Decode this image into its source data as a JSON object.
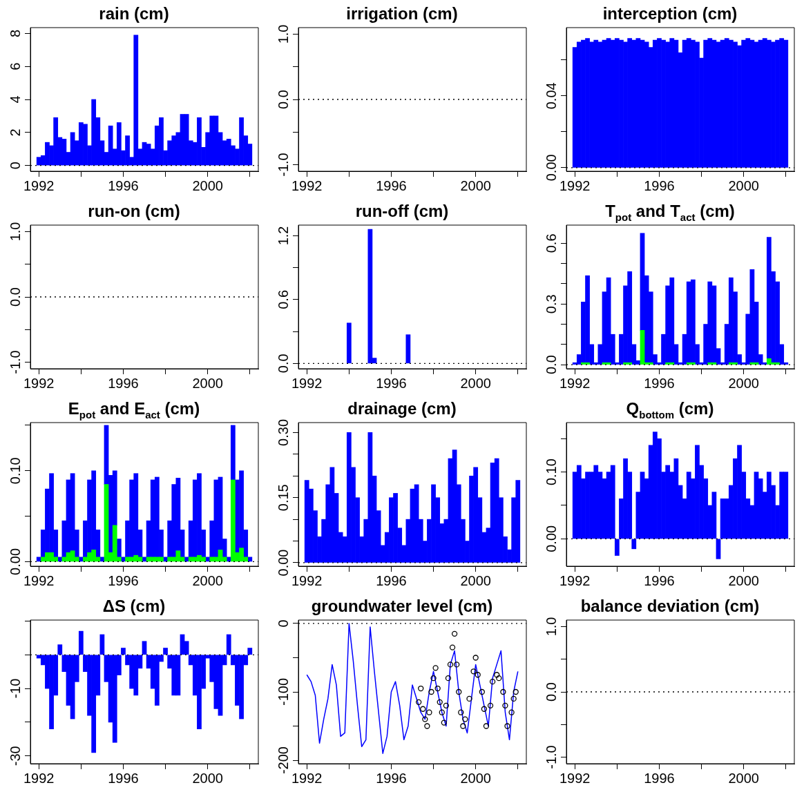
{
  "chart_data": [
    {
      "type": "bar",
      "title": "rain (cm)",
      "color": "#0000ff",
      "x": [
        1992,
        1992.2,
        1992.4,
        1992.6,
        1992.8,
        1993,
        1993.2,
        1993.4,
        1993.6,
        1993.8,
        1994,
        1994.2,
        1994.4,
        1994.6,
        1994.8,
        1995,
        1995.2,
        1995.4,
        1995.6,
        1995.8,
        1996,
        1996.2,
        1996.4,
        1996.6,
        1996.8,
        1997,
        1997.2,
        1997.4,
        1997.6,
        1997.8,
        1998,
        1998.2,
        1998.4,
        1998.6,
        1998.8,
        1999,
        1999.2,
        1999.4,
        1999.6,
        1999.8,
        2000,
        2000.2,
        2000.4,
        2000.6,
        2000.8,
        2001,
        2001.2,
        2001.4,
        2001.6,
        2001.8,
        2002
      ],
      "values": [
        0.5,
        0.6,
        1.4,
        1.2,
        2.9,
        1.7,
        1.6,
        0.8,
        2.0,
        1.5,
        2.6,
        2.5,
        1.2,
        4.0,
        2.9,
        1.5,
        0.8,
        2.4,
        1.0,
        2.6,
        0.9,
        1.8,
        0.5,
        7.9,
        1.0,
        1.4,
        1.3,
        1.0,
        2.4,
        2.9,
        0.9,
        1.5,
        1.8,
        2.0,
        3.1,
        3.1,
        1.5,
        1.4,
        2.9,
        1.1,
        2.0,
        3.0,
        3.0,
        2.0,
        1.5,
        1.6,
        1.2,
        1.0,
        2.9,
        1.8,
        1.3
      ],
      "xlim": [
        1991.6,
        2002.4
      ],
      "xticks": [
        1992,
        {
          "value": 1994,
          "label": null
        },
        1996,
        {
          "value": 1998,
          "label": null
        },
        2000,
        {
          "value": 2002,
          "label": null
        }
      ],
      "ylim": [
        -0.35,
        8.35
      ],
      "yticks": [
        0,
        2,
        4,
        6,
        8
      ],
      "ref_lines": [
        {
          "axis": "y",
          "value": 0,
          "color": "#000000",
          "line_style": "dotted"
        }
      ]
    },
    {
      "type": "bar",
      "title": "irrigation (cm)",
      "xlim": [
        1991.6,
        2002.4
      ],
      "xticks": [
        1992,
        {
          "value": 1994,
          "label": null
        },
        1996,
        {
          "value": 1998,
          "label": null
        },
        2000,
        {
          "value": 2002,
          "label": null
        }
      ],
      "ylim": [
        -1.1,
        1.1
      ],
      "yticks": [
        {
          "value": -1,
          "label": "-1.0"
        },
        {
          "value": -0.5,
          "label": null
        },
        {
          "value": 0,
          "label": "0.0"
        },
        {
          "value": 0.5,
          "label": null
        },
        {
          "value": 1,
          "label": "1.0"
        }
      ],
      "ref_lines": [
        {
          "axis": "y",
          "value": 0,
          "color": "#000000",
          "line_style": "dotted"
        }
      ]
    },
    {
      "type": "bar",
      "title": "interception (cm)",
      "color": "#0000ff",
      "x": [
        1992,
        1992.2,
        1992.4,
        1992.6,
        1992.8,
        1993,
        1993.2,
        1993.4,
        1993.6,
        1993.8,
        1994,
        1994.2,
        1994.4,
        1994.6,
        1994.8,
        1995,
        1995.2,
        1995.4,
        1995.6,
        1995.8,
        1996,
        1996.2,
        1996.4,
        1996.6,
        1996.8,
        1997,
        1997.2,
        1997.4,
        1997.6,
        1997.8,
        1998,
        1998.2,
        1998.4,
        1998.6,
        1998.8,
        1999,
        1999.2,
        1999.4,
        1999.6,
        1999.8,
        2000,
        2000.2,
        2000.4,
        2000.6,
        2000.8,
        2001,
        2001.2,
        2001.4,
        2001.6,
        2001.8,
        2002
      ],
      "values": [
        0.067,
        0.07,
        0.071,
        0.072,
        0.07,
        0.071,
        0.07,
        0.071,
        0.072,
        0.071,
        0.072,
        0.071,
        0.07,
        0.072,
        0.071,
        0.072,
        0.071,
        0.07,
        0.067,
        0.071,
        0.072,
        0.071,
        0.07,
        0.072,
        0.071,
        0.064,
        0.071,
        0.072,
        0.071,
        0.07,
        0.061,
        0.071,
        0.072,
        0.071,
        0.07,
        0.071,
        0.072,
        0.071,
        0.07,
        0.068,
        0.071,
        0.072,
        0.071,
        0.07,
        0.071,
        0.072,
        0.071,
        0.07,
        0.071,
        0.072,
        0.071
      ],
      "xlim": [
        1991.6,
        2002.4
      ],
      "xticks": [
        1992,
        {
          "value": 1994,
          "label": null
        },
        1996,
        {
          "value": 1998,
          "label": null
        },
        2000,
        {
          "value": 2002,
          "label": null
        }
      ],
      "ylim": [
        -0.002,
        0.078
      ],
      "yticks": [
        {
          "value": 0,
          "label": "0.00"
        },
        {
          "value": 0.02,
          "label": null
        },
        {
          "value": 0.04,
          "label": "0.04"
        },
        {
          "value": 0.06,
          "label": null
        }
      ],
      "ref_lines": [
        {
          "axis": "y",
          "value": 0,
          "color": "#000000",
          "line_style": "dotted"
        }
      ]
    },
    {
      "type": "bar",
      "title": "run-on (cm)",
      "xlim": [
        1991.6,
        2002.4
      ],
      "xticks": [
        1992,
        {
          "value": 1994,
          "label": null
        },
        1996,
        {
          "value": 1998,
          "label": null
        },
        2000,
        {
          "value": 2002,
          "label": null
        }
      ],
      "ylim": [
        -1.1,
        1.1
      ],
      "yticks": [
        {
          "value": -1,
          "label": "-1.0"
        },
        {
          "value": -0.5,
          "label": null
        },
        {
          "value": 0,
          "label": "0.0"
        },
        {
          "value": 0.5,
          "label": null
        },
        {
          "value": 1,
          "label": "1.0"
        }
      ],
      "ref_lines": [
        {
          "axis": "y",
          "value": 0,
          "color": "#000000",
          "line_style": "dotted"
        }
      ]
    },
    {
      "type": "bar",
      "title": "run-off (cm)",
      "color": "#0000ff",
      "x": [
        1994,
        1995,
        1995.2,
        1996.8
      ],
      "values": [
        0.38,
        1.26,
        0.05,
        0.27
      ],
      "xlim": [
        1991.6,
        2002.4
      ],
      "xticks": [
        1992,
        {
          "value": 1994,
          "label": null
        },
        1996,
        {
          "value": 1998,
          "label": null
        },
        2000,
        {
          "value": 2002,
          "label": null
        }
      ],
      "ylim": [
        -0.05,
        1.3
      ],
      "yticks": [
        {
          "value": 0,
          "label": "0.0"
        },
        {
          "value": 0.3,
          "label": null
        },
        {
          "value": 0.6,
          "label": "0.6"
        },
        {
          "value": 0.9,
          "label": null
        },
        {
          "value": 1.2,
          "label": "1.2"
        }
      ],
      "ref_lines": [
        {
          "axis": "y",
          "value": 0,
          "color": "#000000",
          "line_style": "dotted"
        }
      ]
    },
    {
      "type": "bar",
      "title": "T$_{pot}$ and T$_{act}$ (cm)",
      "x": [
        1992,
        1992.2,
        1992.4,
        1992.6,
        1992.8,
        1993,
        1993.2,
        1993.4,
        1993.6,
        1993.8,
        1994,
        1994.2,
        1994.4,
        1994.6,
        1994.8,
        1995,
        1995.2,
        1995.4,
        1995.6,
        1995.8,
        1996,
        1996.2,
        1996.4,
        1996.6,
        1996.8,
        1997,
        1997.2,
        1997.4,
        1997.6,
        1997.8,
        1998,
        1998.2,
        1998.4,
        1998.6,
        1998.8,
        1999,
        1999.2,
        1999.4,
        1999.6,
        1999.8,
        2000,
        2000.2,
        2000.4,
        2000.6,
        2000.8,
        2001,
        2001.2,
        2001.4,
        2001.6,
        2001.8,
        2002
      ],
      "series": [
        {
          "color": "#0000ff",
          "values": [
            0.01,
            0.05,
            0.3,
            0.43,
            0.1,
            0.01,
            0.1,
            0.35,
            0.42,
            0.15,
            0.01,
            0.15,
            0.38,
            0.45,
            0.1,
            0.02,
            0.48,
            0.43,
            0.35,
            0.05,
            0.01,
            0.15,
            0.38,
            0.42,
            0.1,
            0.01,
            0.15,
            0.4,
            0.41,
            0.1,
            0.01,
            0.2,
            0.4,
            0.38,
            0.08,
            0.01,
            0.2,
            0.42,
            0.35,
            0.05,
            0.01,
            0.25,
            0.46,
            0.3,
            0.05,
            0.01,
            0.6,
            0.45,
            0.4,
            0.1,
            0.01
          ]
        },
        {
          "color": "#00ff00",
          "values": [
            null,
            null,
            0.01,
            0.01,
            null,
            null,
            null,
            0.01,
            0.01,
            null,
            null,
            null,
            0.01,
            0.01,
            null,
            null,
            0.17,
            0.01,
            0.01,
            null,
            null,
            null,
            0.01,
            0.01,
            null,
            null,
            null,
            0.01,
            0.01,
            null,
            null,
            null,
            0.01,
            0.01,
            null,
            null,
            null,
            0.01,
            0.01,
            null,
            null,
            null,
            0.01,
            0.01,
            null,
            null,
            0.03,
            0.01,
            0.01,
            null,
            null
          ]
        }
      ],
      "stacked": true,
      "xlim": [
        1991.6,
        2002.4
      ],
      "xticks": [
        1992,
        {
          "value": 1994,
          "label": null
        },
        1996,
        {
          "value": 1998,
          "label": null
        },
        2000,
        {
          "value": 2002,
          "label": null
        }
      ],
      "ylim": [
        -0.02,
        0.69
      ],
      "yticks": [
        {
          "value": 0,
          "label": "0.0"
        },
        {
          "value": 0.1,
          "label": null
        },
        {
          "value": 0.2,
          "label": null
        },
        {
          "value": 0.3,
          "label": "0.3"
        },
        {
          "value": 0.4,
          "label": null
        },
        {
          "value": 0.5,
          "label": null
        },
        {
          "value": 0.6,
          "label": "0.6"
        }
      ],
      "ref_lines": [
        {
          "axis": "y",
          "value": 0,
          "color": "#000000",
          "line_style": "dotted"
        }
      ]
    },
    {
      "type": "bar",
      "title": "E$_{pot}$ and E$_{act}$ (cm)",
      "x": [
        1992,
        1992.2,
        1992.4,
        1992.6,
        1992.8,
        1993,
        1993.2,
        1993.4,
        1993.6,
        1993.8,
        1994,
        1994.2,
        1994.4,
        1994.6,
        1994.8,
        1995,
        1995.2,
        1995.4,
        1995.6,
        1995.8,
        1996,
        1996.2,
        1996.4,
        1996.6,
        1996.8,
        1997,
        1997.2,
        1997.4,
        1997.6,
        1997.8,
        1998,
        1998.2,
        1998.4,
        1998.6,
        1998.8,
        1999,
        1999.2,
        1999.4,
        1999.6,
        1999.8,
        2000,
        2000.2,
        2000.4,
        2000.6,
        2000.8,
        2001,
        2001.2,
        2001.4,
        2001.6,
        2001.8,
        2002
      ],
      "series": [
        {
          "color": "#0000ff",
          "values": [
            0.005,
            0.03,
            0.07,
            0.087,
            0.03,
            0.005,
            0.04,
            0.08,
            0.085,
            0.03,
            0.005,
            0.04,
            0.08,
            0.087,
            0.03,
            0.005,
            0.065,
            0.085,
            0.06,
            0.02,
            0.005,
            0.04,
            0.085,
            0.09,
            0.03,
            0.005,
            0.04,
            0.085,
            0.088,
            0.03,
            0.005,
            0.04,
            0.08,
            0.08,
            0.03,
            0.005,
            0.04,
            0.085,
            0.09,
            0.03,
            0.005,
            0.04,
            0.085,
            0.08,
            0.02,
            0.005,
            0.06,
            0.08,
            0.085,
            0.03,
            0.005
          ]
        },
        {
          "color": "#00ff00",
          "values": [
            null,
            0.005,
            0.01,
            0.01,
            0.005,
            null,
            0.005,
            0.01,
            0.012,
            0.005,
            null,
            0.005,
            0.01,
            0.013,
            0.005,
            null,
            0.085,
            0.01,
            0.04,
            0.005,
            null,
            0.005,
            0.005,
            0.007,
            0.005,
            null,
            0.005,
            0.005,
            0.005,
            0.005,
            null,
            0.005,
            0.005,
            0.012,
            0.005,
            null,
            0.005,
            0.005,
            0.007,
            0.005,
            null,
            0.005,
            0.005,
            0.013,
            0.005,
            null,
            0.09,
            0.01,
            0.015,
            0.005,
            null
          ]
        }
      ],
      "stacked": true,
      "xlim": [
        1991.6,
        2002.4
      ],
      "xticks": [
        1992,
        {
          "value": 1994,
          "label": null
        },
        1996,
        {
          "value": 1998,
          "label": null
        },
        2000,
        {
          "value": 2002,
          "label": null
        }
      ],
      "ylim": [
        -0.005,
        0.153
      ],
      "yticks": [
        {
          "value": 0,
          "label": "0.00"
        },
        {
          "value": 0.05,
          "label": null
        },
        {
          "value": 0.1,
          "label": "0.10"
        },
        {
          "value": 0.15,
          "label": null
        }
      ],
      "ref_lines": [
        {
          "axis": "y",
          "value": 0,
          "color": "#000000",
          "line_style": "dotted"
        }
      ]
    },
    {
      "type": "bar",
      "title": "drainage (cm)",
      "color": "#0000ff",
      "x": [
        1992,
        1992.2,
        1992.4,
        1992.6,
        1992.8,
        1993,
        1993.2,
        1993.4,
        1993.6,
        1993.8,
        1994,
        1994.2,
        1994.4,
        1994.6,
        1994.8,
        1995,
        1995.2,
        1995.4,
        1995.6,
        1995.8,
        1996,
        1996.2,
        1996.4,
        1996.6,
        1996.8,
        1997,
        1997.2,
        1997.4,
        1997.6,
        1997.8,
        1998,
        1998.2,
        1998.4,
        1998.6,
        1998.8,
        1999,
        1999.2,
        1999.4,
        1999.6,
        1999.8,
        2000,
        2000.2,
        2000.4,
        2000.6,
        2000.8,
        2001,
        2001.2,
        2001.4,
        2001.6,
        2001.8,
        2002
      ],
      "values": [
        0.19,
        0.17,
        0.12,
        0.06,
        0.1,
        0.18,
        0.22,
        0.16,
        0.07,
        0.06,
        0.3,
        0.22,
        0.15,
        0.06,
        0.1,
        0.3,
        0.2,
        0.12,
        0.04,
        0.07,
        0.15,
        0.16,
        0.08,
        0.04,
        0.1,
        0.17,
        0.18,
        0.1,
        0.05,
        0.1,
        0.18,
        0.15,
        0.09,
        0.1,
        0.24,
        0.26,
        0.18,
        0.1,
        0.05,
        0.2,
        0.22,
        0.15,
        0.07,
        0.08,
        0.23,
        0.24,
        0.15,
        0.06,
        0.03,
        0.15,
        0.19
      ],
      "xlim": [
        1991.6,
        2002.4
      ],
      "xticks": [
        1992,
        {
          "value": 1994,
          "label": null
        },
        1996,
        {
          "value": 1998,
          "label": null
        },
        2000,
        {
          "value": 2002,
          "label": null
        }
      ],
      "ylim": [
        -0.008,
        0.323
      ],
      "yticks": [
        {
          "value": 0,
          "label": "0.00"
        },
        {
          "value": 0.05,
          "label": null
        },
        {
          "value": 0.1,
          "label": null
        },
        {
          "value": 0.15,
          "label": "0.15"
        },
        {
          "value": 0.2,
          "label": null
        },
        {
          "value": 0.25,
          "label": null
        },
        {
          "value": 0.3,
          "label": "0.30"
        }
      ],
      "ref_lines": [
        {
          "axis": "y",
          "value": 0,
          "color": "#000000",
          "line_style": "dotted"
        }
      ]
    },
    {
      "type": "bar",
      "title": "Q$_{bottom}$ (cm)",
      "color": "#0000ff",
      "x": [
        1992,
        1992.2,
        1992.4,
        1992.6,
        1992.8,
        1993,
        1993.2,
        1993.4,
        1993.6,
        1993.8,
        1994,
        1994.2,
        1994.4,
        1994.6,
        1994.8,
        1995,
        1995.2,
        1995.4,
        1995.6,
        1995.8,
        1996,
        1996.2,
        1996.4,
        1996.6,
        1996.8,
        1997,
        1997.2,
        1997.4,
        1997.6,
        1997.8,
        1998,
        1998.2,
        1998.4,
        1998.6,
        1998.8,
        1999,
        1999.2,
        1999.4,
        1999.6,
        1999.8,
        2000,
        2000.2,
        2000.4,
        2000.6,
        2000.8,
        2001,
        2001.2,
        2001.4,
        2001.6,
        2001.8,
        2002
      ],
      "values": [
        0.1,
        0.11,
        0.09,
        0.1,
        0.1,
        0.11,
        0.1,
        0.09,
        0.1,
        0.11,
        -0.025,
        0.06,
        0.12,
        0.1,
        -0.015,
        0.07,
        0.1,
        0.09,
        0.14,
        0.16,
        0.15,
        0.1,
        0.11,
        0.1,
        0.12,
        0.08,
        0.06,
        0.1,
        0.09,
        0.14,
        0.11,
        0.09,
        0.05,
        0.07,
        -0.03,
        0.06,
        0.06,
        0.08,
        0.12,
        0.14,
        0.1,
        0.06,
        0.05,
        0.1,
        0.09,
        0.07,
        0.1,
        0.08,
        0.05,
        0.1,
        0.1
      ],
      "xlim": [
        1991.6,
        2002.4
      ],
      "xticks": [
        1992,
        {
          "value": 1994,
          "label": null
        },
        1996,
        {
          "value": 1998,
          "label": null
        },
        2000,
        {
          "value": 2002,
          "label": null
        }
      ],
      "ylim": [
        -0.041,
        0.174
      ],
      "yticks": [
        {
          "value": 0,
          "label": "0.00"
        },
        {
          "value": 0.05,
          "label": null
        },
        {
          "value": 0.1,
          "label": "0.10"
        },
        {
          "value": 0.15,
          "label": null
        }
      ],
      "ref_lines": [
        {
          "axis": "y",
          "value": 0,
          "color": "#000000",
          "line_style": "dotted"
        }
      ]
    },
    {
      "type": "bar",
      "title": "ΔS (cm)",
      "color": "#0000ff",
      "x": [
        1992,
        1992.2,
        1992.4,
        1992.6,
        1992.8,
        1993,
        1993.2,
        1993.4,
        1993.6,
        1993.8,
        1994,
        1994.2,
        1994.4,
        1994.6,
        1994.8,
        1995,
        1995.2,
        1995.4,
        1995.6,
        1995.8,
        1996,
        1996.2,
        1996.4,
        1996.6,
        1996.8,
        1997,
        1997.2,
        1997.4,
        1997.6,
        1997.8,
        1998,
        1998.2,
        1998.4,
        1998.6,
        1998.8,
        1999,
        1999.2,
        1999.4,
        1999.6,
        1999.8,
        2000,
        2000.2,
        2000.4,
        2000.6,
        2000.8,
        2001,
        2001.2,
        2001.4,
        2001.6,
        2001.8,
        2002
      ],
      "values": [
        -1,
        -3,
        -10,
        -22,
        -12,
        3,
        -5,
        -15,
        -19,
        -8,
        7,
        -5,
        -18,
        -29,
        -12,
        6,
        -8,
        -20,
        -26,
        -6,
        2,
        -3,
        -10,
        -12,
        -4,
        4,
        -4,
        -10,
        -15,
        -2,
        2,
        -4,
        -12,
        -12,
        6,
        4,
        -3,
        -12,
        -22,
        -10,
        -1,
        -8,
        -16,
        -18,
        -3,
        6,
        -3,
        -15,
        -19,
        -3,
        2
      ],
      "xlim": [
        1991.6,
        2002.4
      ],
      "xticks": [
        1992,
        {
          "value": 1994,
          "label": null
        },
        1996,
        {
          "value": 1998,
          "label": null
        },
        2000,
        {
          "value": 2002,
          "label": null
        }
      ],
      "ylim": [
        -32.3,
        10.3
      ],
      "yticks": [
        -30,
        {
          "value": -20,
          "label": null
        },
        -10,
        {
          "value": 0,
          "label": null
        },
        {
          "value": 10,
          "label": null
        }
      ],
      "ref_lines": [
        {
          "axis": "y",
          "value": 0,
          "color": "#000000",
          "line_style": "dotted"
        }
      ]
    },
    {
      "type": "line",
      "title": "groundwater level (cm)",
      "series": [
        {
          "type": "line",
          "color": "#0000ff",
          "marker": "none",
          "x": [
            1992,
            1992.2,
            1992.4,
            1992.6,
            1992.8,
            1993,
            1993.2,
            1993.4,
            1993.6,
            1993.8,
            1994,
            1994.2,
            1994.4,
            1994.6,
            1994.8,
            1995,
            1995.2,
            1995.4,
            1995.6,
            1995.8,
            1996,
            1996.2,
            1996.4,
            1996.6,
            1996.8,
            1997,
            1997.2,
            1997.4,
            1997.6,
            1997.8,
            1998,
            1998.2,
            1998.4,
            1998.6,
            1998.8,
            1999,
            1999.2,
            1999.4,
            1999.6,
            1999.8,
            2000,
            2000.2,
            2000.4,
            2000.6,
            2000.8,
            2001,
            2001.2,
            2001.4,
            2001.6,
            2001.8,
            2002
          ],
          "values": [
            -75,
            -85,
            -105,
            -175,
            -140,
            -110,
            -60,
            -90,
            -165,
            -160,
            0,
            -55,
            -120,
            -180,
            -170,
            -5,
            -70,
            -130,
            -190,
            -165,
            -100,
            -85,
            -120,
            -170,
            -150,
            -90,
            -110,
            -130,
            -140,
            -100,
            -70,
            -100,
            -130,
            -150,
            -60,
            -40,
            -100,
            -140,
            -160,
            -110,
            -60,
            -90,
            -120,
            -150,
            -80,
            -60,
            -40,
            -130,
            -170,
            -100,
            -70
          ]
        },
        {
          "type": "scatter",
          "color": "#000000",
          "marker": "circle",
          "x": [
            1997.3,
            1997.4,
            1997.5,
            1997.6,
            1997.7,
            1997.8,
            1997.9,
            1998.0,
            1998.1,
            1998.2,
            1998.3,
            1998.4,
            1998.5,
            1998.6,
            1998.7,
            1998.8,
            1998.9,
            1999.0,
            1999.1,
            1999.2,
            1999.3,
            1999.4,
            1999.5,
            1999.7,
            1999.9,
            2000.0,
            2000.1,
            2000.3,
            2000.4,
            2000.5,
            2000.7,
            2000.8,
            2001.0,
            2001.1,
            2001.3,
            2001.4,
            2001.5,
            2001.7,
            2001.8,
            2001.9
          ],
          "values": [
            -115,
            -95,
            -125,
            -140,
            -150,
            -130,
            -100,
            -80,
            -65,
            -95,
            -115,
            -130,
            -145,
            -120,
            -80,
            -60,
            -35,
            -15,
            -60,
            -100,
            -130,
            -150,
            -140,
            -110,
            -70,
            -50,
            -75,
            -100,
            -125,
            -150,
            -120,
            -85,
            -75,
            -80,
            -100,
            -120,
            -150,
            -130,
            -110,
            -100
          ]
        }
      ],
      "xlim": [
        1991.6,
        2002.4
      ],
      "xticks": [
        1992,
        {
          "value": 1994,
          "label": null
        },
        1996,
        {
          "value": 1998,
          "label": null
        },
        2000,
        {
          "value": 2002,
          "label": null
        }
      ],
      "ylim": [
        -205,
        5
      ],
      "yticks": [
        -200,
        {
          "value": -150,
          "label": null
        },
        -100,
        {
          "value": -50,
          "label": null
        },
        0
      ],
      "ref_lines": [
        {
          "axis": "y",
          "value": 0,
          "color": "#000000",
          "line_style": "dotted"
        }
      ]
    },
    {
      "type": "bar",
      "title": "balance deviation (cm)",
      "xlim": [
        1991.6,
        2002.4
      ],
      "xticks": [
        1992,
        {
          "value": 1994,
          "label": null
        },
        1996,
        {
          "value": 1998,
          "label": null
        },
        2000,
        {
          "value": 2002,
          "label": null
        }
      ],
      "ylim": [
        -1.1,
        1.1
      ],
      "yticks": [
        {
          "value": -1,
          "label": "-1.0"
        },
        {
          "value": -0.5,
          "label": null
        },
        {
          "value": 0,
          "label": "0.0"
        },
        {
          "value": 0.5,
          "label": null
        },
        {
          "value": 1,
          "label": "1.0"
        }
      ],
      "ref_lines": [
        {
          "axis": "y",
          "value": 0,
          "color": "#000000",
          "line_style": "dotted"
        }
      ]
    }
  ]
}
